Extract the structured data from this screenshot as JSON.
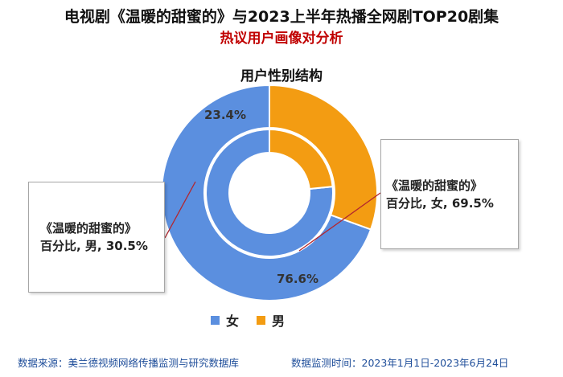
{
  "header": {
    "title": "电视剧《温暖的甜蜜的》与2023上半年热播全网剧TOP20剧集",
    "subtitle": "热议用户画像对分析"
  },
  "chart_data": {
    "type": "pie",
    "title": "用户性别结构",
    "categories": [
      "女",
      "男"
    ],
    "colors": {
      "女": "#5b8fdf",
      "男": "#f39c12"
    },
    "series": [
      {
        "values": [
          76.6,
          23.4
        ],
        "labels": [
          "76.6%",
          "23.4%"
        ]
      },
      {
        "values": [
          69.5,
          30.5
        ],
        "labels": [
          "",
          ""
        ]
      }
    ],
    "legend_position": "bottom"
  },
  "callouts": {
    "left": {
      "line1": "《温暖的甜蜜的》",
      "line2": "百分比, 男, 30.5%"
    },
    "right": {
      "line1": "《温暖的甜蜜的》",
      "line2": "百分比, 女, 69.5%"
    }
  },
  "footer": {
    "source": "数据来源：美兰德视频网络传播监测与研究数据库",
    "period": "数据监测时间：2023年1月1日-2023年6月24日"
  }
}
